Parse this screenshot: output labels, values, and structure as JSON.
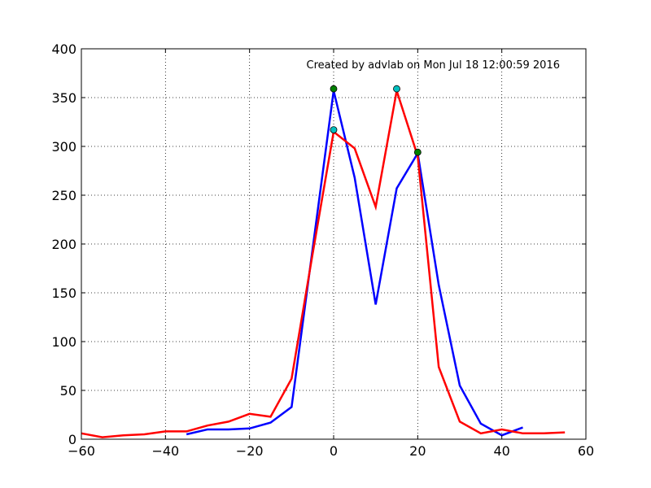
{
  "chart_data": {
    "type": "line",
    "title": "",
    "xlabel": "",
    "ylabel": "",
    "xlim": [
      -60,
      60
    ],
    "ylim": [
      0,
      400
    ],
    "x_ticks": [
      -60,
      -40,
      -20,
      0,
      20,
      40,
      60
    ],
    "y_ticks": [
      0,
      50,
      100,
      150,
      200,
      250,
      300,
      350,
      400
    ],
    "x_tick_labels": [
      "−60",
      "−40",
      "−20",
      "0",
      "20",
      "40",
      "60"
    ],
    "y_tick_labels": [
      "0",
      "50",
      "100",
      "150",
      "200",
      "250",
      "300",
      "350",
      "400"
    ],
    "grid": true,
    "annotation": "Created by advlab on Mon Jul 18 12:00:59 2016",
    "series": [
      {
        "color": "#0000ff",
        "x": [
          -35,
          -30,
          -25,
          -20,
          -15,
          -10,
          0,
          5,
          10,
          15,
          20,
          25,
          30,
          35,
          40,
          45
        ],
        "y": [
          5,
          10,
          10,
          11,
          17,
          33,
          357,
          268,
          138,
          257,
          293,
          158,
          55,
          16,
          4,
          12
        ]
      },
      {
        "color": "#ff0000",
        "x": [
          -60,
          -55,
          -50,
          -45,
          -40,
          -35,
          -30,
          -25,
          -20,
          -15,
          -10,
          -5,
          0,
          5,
          10,
          15,
          20,
          25,
          30,
          35,
          40,
          45,
          50,
          55
        ],
        "y": [
          6,
          2,
          4,
          5,
          8,
          8,
          14,
          18,
          26,
          23,
          62,
          190,
          315,
          298,
          238,
          357,
          290,
          74,
          18,
          6,
          10,
          6,
          6,
          7
        ]
      }
    ],
    "markers": [
      {
        "x": 0,
        "y": 359,
        "color": "#008000"
      },
      {
        "x": 20,
        "y": 294,
        "color": "#008000"
      },
      {
        "x": 0,
        "y": 317,
        "color": "#00bfbf"
      },
      {
        "x": 15,
        "y": 359,
        "color": "#00bfbf"
      }
    ]
  }
}
